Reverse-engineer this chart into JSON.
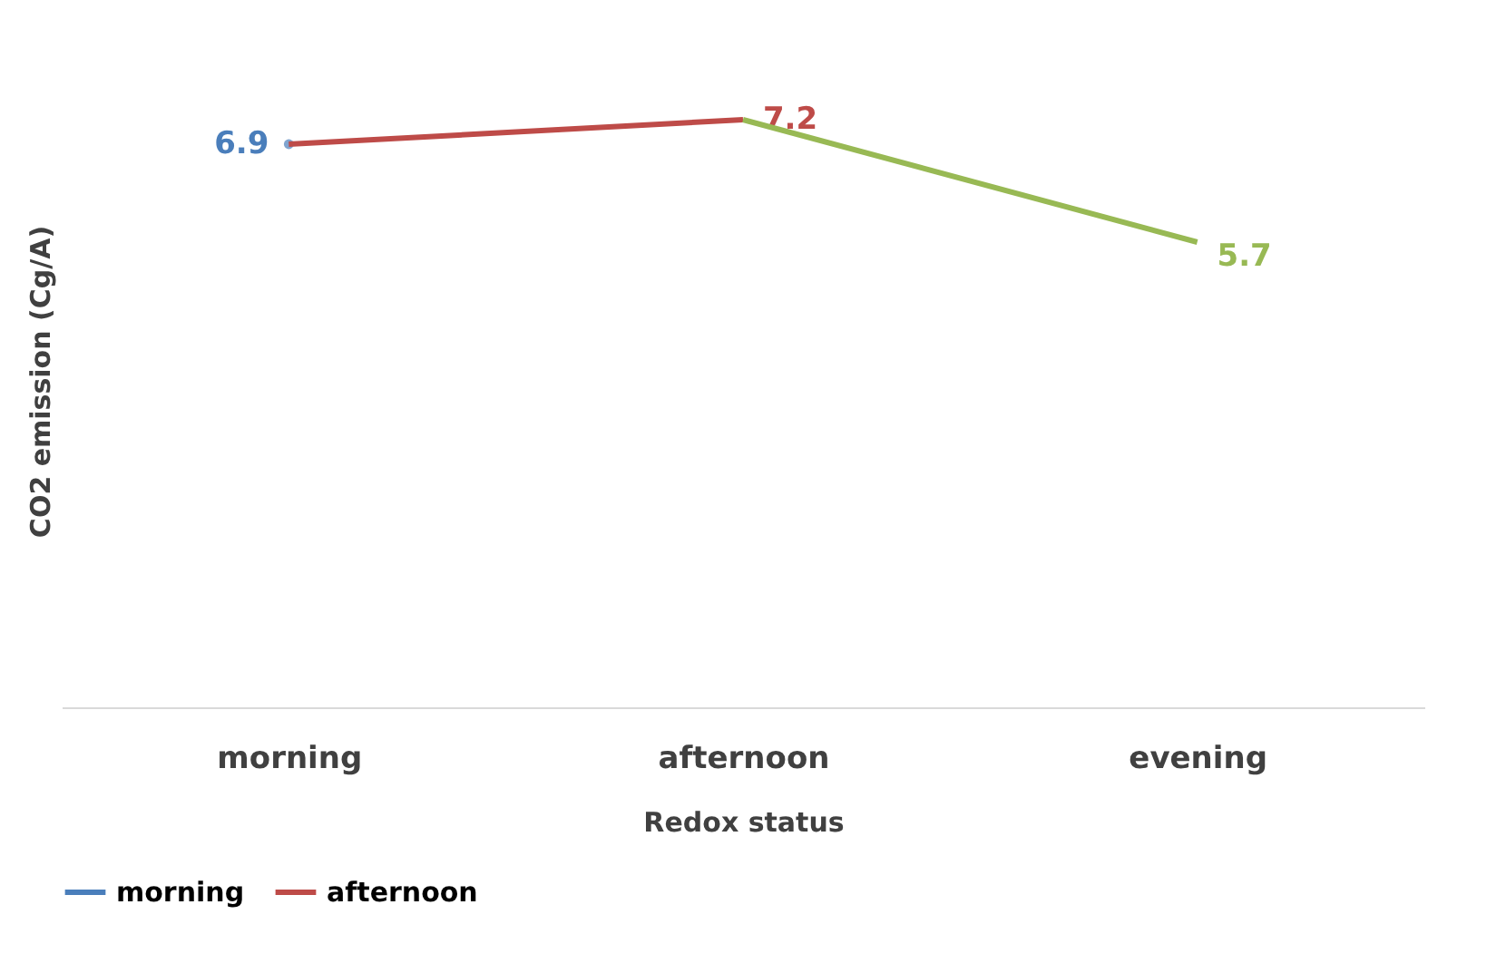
{
  "chart_data": {
    "type": "line",
    "xlabel": "Redox status",
    "ylabel": "CO2 emission (Cg/A)",
    "categories": [
      "morning",
      "afternoon",
      "evening"
    ],
    "series": [
      {
        "name": "morning",
        "color": "#4a7ebb",
        "marker": "circle",
        "values": [
          6.9,
          null,
          null
        ],
        "value_labels": [
          "6.9",
          null,
          null
        ]
      },
      {
        "name": "afternoon",
        "color": "#be4b48",
        "values": [
          6.9,
          7.2,
          null
        ],
        "value_labels": [
          null,
          "7.2",
          null
        ]
      },
      {
        "color": "#98b954",
        "values": [
          null,
          7.2,
          5.7
        ],
        "value_labels": [
          null,
          null,
          "5.7"
        ]
      }
    ],
    "legend": "bottom",
    "grid": false,
    "marker": "none",
    "line_style": "solid"
  }
}
